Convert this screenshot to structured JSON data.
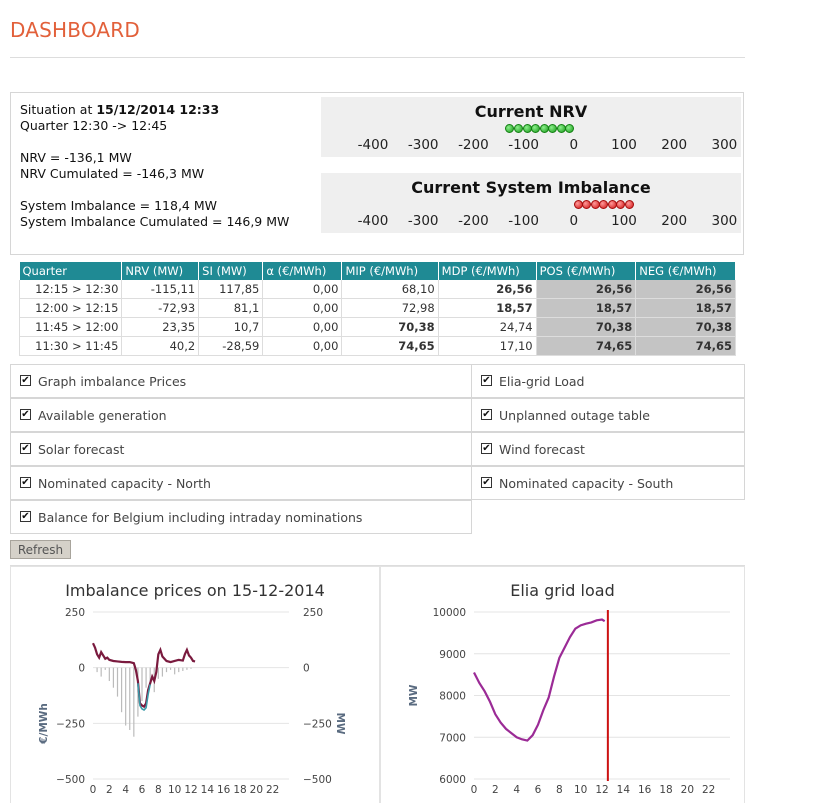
{
  "page": {
    "title": "DASHBOARD"
  },
  "situation": {
    "prefix": "Situation at ",
    "datetime": "15/12/2014 12:33",
    "quarter": "Quarter 12:30 -> 12:45",
    "nrv": "NRV = -136,1 MW",
    "nrv_cumulated": "NRV Cumulated = -146,3 MW",
    "si": "System Imbalance = 118,4 MW",
    "si_cumulated": "System Imbalance Cumulated = 146,9 MW"
  },
  "gauges": [
    {
      "title": "Current NRV",
      "ticks": [
        "-400",
        "-300",
        "-200",
        "-100",
        "0",
        "100",
        "200",
        "300"
      ],
      "dot_color": "#1a9a1a",
      "value": -136.1
    },
    {
      "title": "Current System Imbalance",
      "ticks": [
        "-400",
        "-300",
        "-200",
        "-100",
        "0",
        "100",
        "200",
        "300"
      ],
      "dot_color": "#d11414",
      "value": 118.4
    }
  ],
  "quarter_table": {
    "headers": [
      "Quarter",
      "NRV (MW)",
      "SI (MW)",
      "α (€/MWh)",
      "MIP (€/MWh)",
      "MDP (€/MWh)",
      "POS (€/MWh)",
      "NEG (€/MWh)"
    ],
    "rows": [
      {
        "cells": [
          "12:15 > 12:30",
          "-115,11",
          "117,85",
          "0,00",
          "68,10",
          "26,56",
          "26,56",
          "26,56"
        ],
        "bold": [
          5
        ]
      },
      {
        "cells": [
          "12:00 > 12:15",
          "-72,93",
          "81,1",
          "0,00",
          "72,98",
          "18,57",
          "18,57",
          "18,57"
        ],
        "bold": [
          5
        ]
      },
      {
        "cells": [
          "11:45 > 12:00",
          "23,35",
          "10,7",
          "0,00",
          "70,38",
          "24,74",
          "70,38",
          "70,38"
        ],
        "bold": [
          4
        ]
      },
      {
        "cells": [
          "11:30 > 11:45",
          "40,2",
          "-28,59",
          "0,00",
          "74,65",
          "17,10",
          "74,65",
          "74,65"
        ],
        "bold": [
          4
        ]
      }
    ]
  },
  "options": [
    {
      "label": "Graph imbalance Prices",
      "checked": true
    },
    {
      "label": "Elia-grid Load",
      "checked": true
    },
    {
      "label": "Available generation",
      "checked": true
    },
    {
      "label": "Unplanned outage table",
      "checked": true
    },
    {
      "label": "Solar forecast",
      "checked": true
    },
    {
      "label": "Wind forecast",
      "checked": true
    },
    {
      "label": "Nominated capacity - North",
      "checked": true
    },
    {
      "label": "Nominated capacity - South",
      "checked": true
    },
    {
      "label": "Balance for Belgium including intraday nominations",
      "checked": true
    }
  ],
  "refresh_label": "Refresh",
  "chart_data": [
    {
      "type": "line",
      "title": "Imbalance prices on 15-12-2014",
      "ylabel": "€/MWh",
      "y2label": "MW",
      "ylim": [
        -500,
        250
      ],
      "y_ticks": [
        "250",
        "0",
        "−250",
        "−500"
      ],
      "y2_ticks": [
        "250",
        "0",
        "−250",
        "−500"
      ],
      "x_ticks": [
        "0",
        "2",
        "4",
        "6",
        "8",
        "10",
        "12",
        "14",
        "16",
        "18",
        "20",
        "22"
      ],
      "xlim": [
        0,
        24
      ],
      "series": [
        {
          "color": "#7a1a3e",
          "x": [
            0,
            0.25,
            0.5,
            0.75,
            1,
            1.25,
            1.5,
            1.75,
            2,
            2.5,
            3,
            3.5,
            4,
            4.5,
            5,
            5.25,
            5.5,
            5.75,
            6,
            6.25,
            6.5,
            6.75,
            7,
            7.25,
            7.5,
            7.75,
            8,
            8.25,
            8.5,
            9,
            9.5,
            10,
            10.5,
            11,
            11.25,
            11.5,
            11.75,
            12,
            12.25,
            12.5
          ],
          "values": [
            110,
            90,
            60,
            45,
            70,
            55,
            40,
            45,
            35,
            30,
            28,
            26,
            25,
            25,
            20,
            -10,
            -60,
            -160,
            -170,
            -175,
            -160,
            -100,
            -70,
            -40,
            -60,
            -20,
            60,
            80,
            50,
            30,
            25,
            30,
            35,
            32,
            60,
            80,
            55,
            45,
            30,
            28
          ]
        },
        {
          "color": "#3a9aa8",
          "x": [
            5.5,
            5.75,
            6,
            6.25,
            6.5,
            6.75,
            7
          ],
          "values": [
            -70,
            -170,
            -185,
            -190,
            -180,
            -120,
            -75
          ]
        }
      ],
      "bars": {
        "color": "#bbbbbb",
        "x": [
          0.5,
          1,
          1.5,
          2,
          2.5,
          3,
          3.5,
          4,
          4.5,
          5,
          5.5,
          6,
          6.5,
          7,
          7.5,
          8,
          8.5,
          9,
          9.5,
          10,
          10.5,
          11,
          11.5,
          12
        ],
        "values": [
          -20,
          -40,
          -10,
          -60,
          -90,
          -130,
          -200,
          -260,
          -280,
          -310,
          -220,
          -150,
          -90,
          -60,
          -110,
          -50,
          -40,
          -20,
          -10,
          -30,
          -20,
          -15,
          -10,
          -5
        ]
      }
    },
    {
      "type": "line",
      "title": "Elia grid load",
      "ylabel": "MW",
      "ylim": [
        6000,
        10000
      ],
      "y_ticks": [
        "10000",
        "9000",
        "8000",
        "7000",
        "6000"
      ],
      "x_ticks": [
        "0",
        "2",
        "4",
        "6",
        "8",
        "10",
        "12",
        "14",
        "16",
        "18",
        "20",
        "22"
      ],
      "xlim": [
        0,
        24
      ],
      "series": [
        {
          "color": "#9b2b96",
          "x": [
            0,
            0.5,
            1,
            1.5,
            2,
            2.5,
            3,
            3.5,
            4,
            4.5,
            5,
            5.5,
            6,
            6.5,
            7,
            7.5,
            8,
            8.5,
            9,
            9.5,
            10,
            10.5,
            11,
            11.5,
            12,
            12.25
          ],
          "values": [
            8550,
            8300,
            8100,
            7850,
            7550,
            7350,
            7200,
            7100,
            7000,
            6950,
            6920,
            7050,
            7300,
            7650,
            7950,
            8450,
            8900,
            9150,
            9400,
            9600,
            9680,
            9720,
            9750,
            9800,
            9820,
            9780
          ]
        }
      ],
      "marker": {
        "color": "#cc1111",
        "x": 12.55
      }
    }
  ]
}
